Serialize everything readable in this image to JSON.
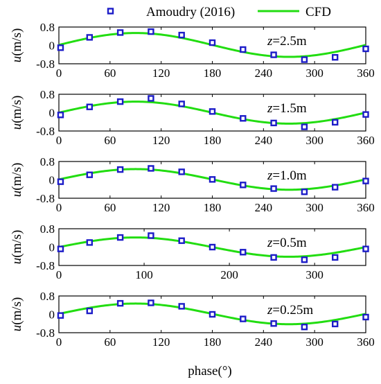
{
  "chart_data": {
    "type": "line",
    "xlabel": "phase(°)",
    "legend": {
      "placement": "top",
      "entries": [
        {
          "label": "Amoudry (2016)",
          "kind": "marker",
          "color": "#1c1cc8"
        },
        {
          "label": "CFD",
          "kind": "line",
          "color": "#22dd11"
        }
      ]
    },
    "panels": [
      {
        "annotation_italic": "z",
        "annotation_rest": "=2.5m",
        "ylabel_italic": "u",
        "ylabel_rest": "(m/s)",
        "ylim": [
          -0.8,
          0.8
        ],
        "yticks": [
          "0.8",
          "0",
          "-0.8"
        ],
        "xlim": [
          0,
          360
        ],
        "xticks": [
          "0",
          "60",
          "120",
          "180",
          "240",
          "300",
          "360"
        ],
        "xtick_values": [
          0,
          60,
          120,
          180,
          240,
          300,
          360
        ],
        "cfd": {
          "amplitude": 0.52,
          "phase_of_peak": 90,
          "offset": 0.02
        },
        "amoudry": {
          "x": [
            2,
            36,
            72,
            108,
            144,
            180,
            216,
            252,
            288,
            324,
            360
          ],
          "y": [
            -0.1,
            0.35,
            0.56,
            0.6,
            0.45,
            0.12,
            -0.18,
            -0.41,
            -0.62,
            -0.52,
            -0.15
          ]
        }
      },
      {
        "annotation_italic": "z",
        "annotation_rest": "=1.5m",
        "ylabel_italic": "u",
        "ylabel_rest": "(m/s)",
        "ylim": [
          -0.8,
          0.8
        ],
        "yticks": [
          "0.8",
          "0",
          "-0.8"
        ],
        "xlim": [
          0,
          360
        ],
        "xticks": [
          "0",
          "60",
          "120",
          "180",
          "240",
          "300",
          "360"
        ],
        "xtick_values": [
          0,
          60,
          120,
          180,
          240,
          300,
          360
        ],
        "cfd": {
          "amplitude": 0.48,
          "phase_of_peak": 90,
          "offset": 0.0
        },
        "amoudry": {
          "x": [
            2,
            36,
            72,
            108,
            144,
            180,
            216,
            252,
            288,
            324,
            360
          ],
          "y": [
            -0.1,
            0.25,
            0.48,
            0.62,
            0.38,
            0.05,
            -0.25,
            -0.45,
            -0.62,
            -0.42,
            -0.08
          ]
        }
      },
      {
        "annotation_italic": "z",
        "annotation_rest": "=1.0m",
        "ylabel_italic": "u",
        "ylabel_rest": "(m/s)",
        "ylim": [
          -0.8,
          0.8
        ],
        "yticks": [
          "0.8",
          "0",
          "-0.8"
        ],
        "xlim": [
          0,
          360
        ],
        "xticks": [
          "0",
          "60",
          "120",
          "180",
          "240",
          "300",
          "360"
        ],
        "xtick_values": [
          0,
          60,
          120,
          180,
          240,
          300,
          360
        ],
        "cfd": {
          "amplitude": 0.45,
          "phase_of_peak": 90,
          "offset": 0.02
        },
        "amoudry": {
          "x": [
            2,
            36,
            72,
            108,
            144,
            180,
            216,
            252,
            288,
            324,
            360
          ],
          "y": [
            -0.08,
            0.22,
            0.45,
            0.5,
            0.35,
            0.02,
            -0.22,
            -0.38,
            -0.52,
            -0.32,
            -0.05
          ]
        }
      },
      {
        "annotation_italic": "z",
        "annotation_rest": "=0.5m",
        "ylabel_italic": "u",
        "ylabel_rest": "(m/s)",
        "ylim": [
          -0.8,
          0.8
        ],
        "yticks": [
          "0.8",
          "0",
          "-0.8"
        ],
        "xlim": [
          0,
          360
        ],
        "xticks": [
          "0",
          "100",
          "200",
          "300"
        ],
        "xtick_values": [
          0,
          100,
          200,
          300
        ],
        "cfd": {
          "amplitude": 0.42,
          "phase_of_peak": 90,
          "offset": 0.0
        },
        "amoudry": {
          "x": [
            2,
            36,
            72,
            108,
            144,
            180,
            216,
            252,
            288,
            324,
            360
          ],
          "y": [
            -0.08,
            0.2,
            0.42,
            0.5,
            0.28,
            0.0,
            -0.22,
            -0.45,
            -0.55,
            -0.45,
            -0.08
          ]
        }
      },
      {
        "annotation_italic": "z",
        "annotation_rest": "=0.25m",
        "ylabel_italic": "u",
        "ylabel_rest": "(m/s)",
        "ylim": [
          -0.8,
          0.8
        ],
        "yticks": [
          "0.8",
          "0",
          "-0.8"
        ],
        "xlim": [
          0,
          360
        ],
        "xticks": [
          "0",
          "60",
          "120",
          "180",
          "240",
          "300",
          "360"
        ],
        "xtick_values": [
          0,
          60,
          120,
          180,
          240,
          300,
          360
        ],
        "cfd": {
          "amplitude": 0.45,
          "phase_of_peak": 90,
          "offset": 0.02
        },
        "amoudry": {
          "x": [
            2,
            36,
            72,
            108,
            144,
            180,
            216,
            252,
            288,
            324,
            360
          ],
          "y": [
            -0.05,
            0.15,
            0.48,
            0.5,
            0.35,
            0.0,
            -0.2,
            -0.4,
            -0.55,
            -0.42,
            -0.12
          ]
        }
      }
    ]
  }
}
